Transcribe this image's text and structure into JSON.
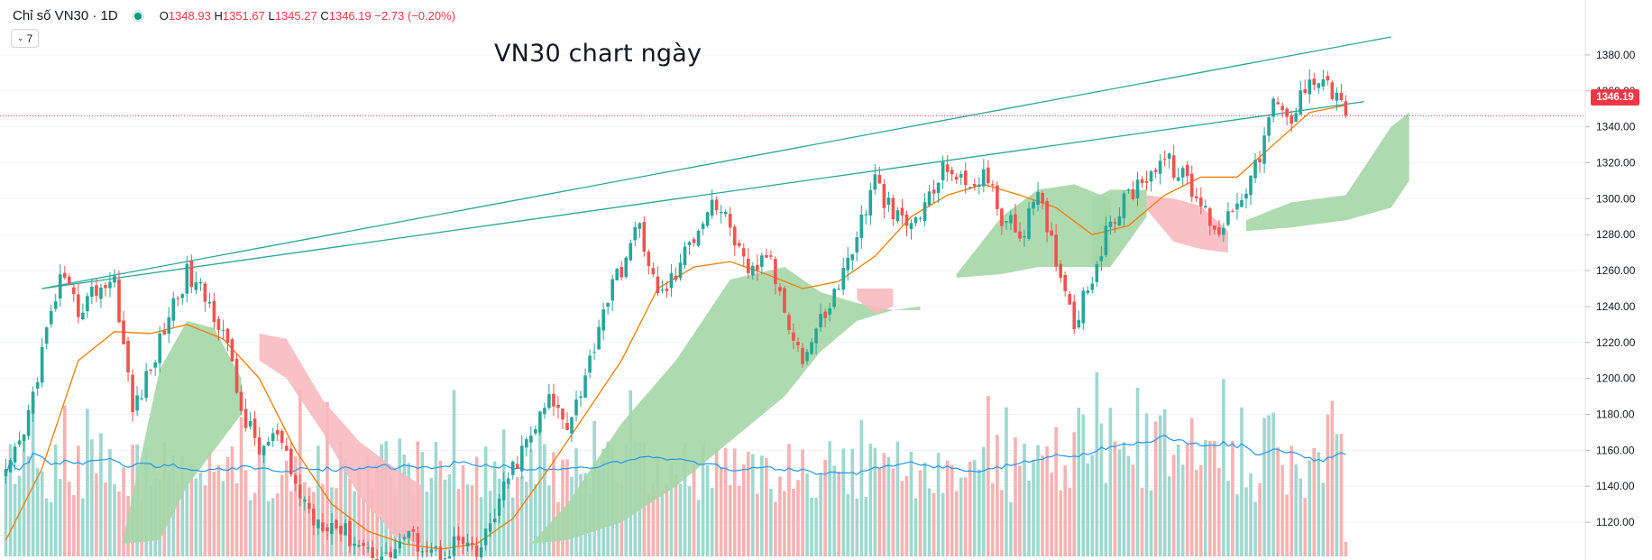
{
  "header": {
    "symbol": "Chỉ số VN30 · 1D",
    "open_label": "O",
    "open": "1348.93",
    "high_label": "H",
    "high": "1351.67",
    "low_label": "L",
    "low": "1345.27",
    "close_label": "C",
    "close": "1346.19",
    "change": "−2.73 (−0.20%)",
    "indicators_count": "7"
  },
  "title": "VN30 chart ngày",
  "last_price_tag": "1346.19",
  "colors": {
    "up": "#26a69a",
    "down": "#ef5350",
    "vol_up": "#9fd8cf",
    "vol_down": "#f6b2b2",
    "ma": "#f57c00",
    "vol_ma": "#2196f3",
    "cloud_bull": "#a5d6a7",
    "cloud_bear": "#f8b9bf",
    "trendline": "#26a69a",
    "last_price": "#f23645"
  },
  "chart_data": {
    "type": "candlestick",
    "interval": "1D",
    "y_axis": {
      "ylim": [
        1108,
        1392
      ],
      "ticks": [
        1380,
        1360,
        1340,
        1320,
        1300,
        1280,
        1260,
        1240,
        1220,
        1200,
        1180,
        1160,
        1140,
        1120
      ]
    },
    "last_price": 1346.19,
    "close_path": [
      [
        0,
        1145
      ],
      [
        4,
        1168
      ],
      [
        8,
        1215
      ],
      [
        12,
        1255
      ],
      [
        16,
        1238
      ],
      [
        20,
        1250
      ],
      [
        24,
        1255
      ],
      [
        28,
        1182
      ],
      [
        32,
        1205
      ],
      [
        36,
        1236
      ],
      [
        40,
        1258
      ],
      [
        44,
        1245
      ],
      [
        48,
        1228
      ],
      [
        52,
        1182
      ],
      [
        56,
        1160
      ],
      [
        60,
        1168
      ],
      [
        64,
        1140
      ],
      [
        68,
        1122
      ],
      [
        72,
        1120
      ],
      [
        76,
        1112
      ],
      [
        80,
        1105
      ],
      [
        84,
        1100
      ],
      [
        88,
        1112
      ],
      [
        92,
        1108
      ],
      [
        96,
        1102
      ],
      [
        100,
        1110
      ],
      [
        104,
        1100
      ],
      [
        108,
        1125
      ],
      [
        112,
        1150
      ],
      [
        116,
        1168
      ],
      [
        120,
        1188
      ],
      [
        124,
        1176
      ],
      [
        128,
        1200
      ],
      [
        132,
        1240
      ],
      [
        136,
        1262
      ],
      [
        140,
        1285
      ],
      [
        144,
        1245
      ],
      [
        148,
        1258
      ],
      [
        152,
        1280
      ],
      [
        156,
        1300
      ],
      [
        160,
        1285
      ],
      [
        164,
        1255
      ],
      [
        168,
        1270
      ],
      [
        172,
        1240
      ],
      [
        176,
        1210
      ],
      [
        180,
        1232
      ],
      [
        184,
        1252
      ],
      [
        188,
        1280
      ],
      [
        192,
        1310
      ],
      [
        196,
        1290
      ],
      [
        200,
        1285
      ],
      [
        204,
        1300
      ],
      [
        208,
        1320
      ],
      [
        212,
        1305
      ],
      [
        216,
        1315
      ],
      [
        220,
        1290
      ],
      [
        224,
        1280
      ],
      [
        228,
        1300
      ],
      [
        232,
        1268
      ],
      [
        236,
        1232
      ],
      [
        240,
        1258
      ],
      [
        244,
        1286
      ],
      [
        248,
        1302
      ],
      [
        252,
        1314
      ],
      [
        256,
        1322
      ],
      [
        260,
        1312
      ],
      [
        264,
        1296
      ],
      [
        268,
        1282
      ],
      [
        272,
        1300
      ],
      [
        276,
        1316
      ],
      [
        280,
        1352
      ],
      [
        284,
        1342
      ],
      [
        288,
        1370
      ],
      [
        292,
        1365
      ],
      [
        296,
        1346
      ]
    ],
    "ma20_path": [
      [
        0,
        1110
      ],
      [
        8,
        1150
      ],
      [
        16,
        1210
      ],
      [
        24,
        1226
      ],
      [
        32,
        1225
      ],
      [
        40,
        1230
      ],
      [
        48,
        1222
      ],
      [
        56,
        1200
      ],
      [
        64,
        1160
      ],
      [
        72,
        1130
      ],
      [
        80,
        1115
      ],
      [
        88,
        1108
      ],
      [
        96,
        1105
      ],
      [
        104,
        1108
      ],
      [
        112,
        1122
      ],
      [
        120,
        1150
      ],
      [
        128,
        1180
      ],
      [
        136,
        1210
      ],
      [
        144,
        1250
      ],
      [
        152,
        1262
      ],
      [
        160,
        1265
      ],
      [
        168,
        1258
      ],
      [
        176,
        1250
      ],
      [
        184,
        1254
      ],
      [
        192,
        1268
      ],
      [
        200,
        1290
      ],
      [
        208,
        1302
      ],
      [
        216,
        1308
      ],
      [
        224,
        1302
      ],
      [
        232,
        1295
      ],
      [
        240,
        1280
      ],
      [
        248,
        1285
      ],
      [
        256,
        1302
      ],
      [
        264,
        1312
      ],
      [
        272,
        1312
      ],
      [
        280,
        1330
      ],
      [
        288,
        1348
      ],
      [
        296,
        1352
      ]
    ],
    "cloud_bull": [
      {
        "x": [
          26,
          34,
          40,
          46,
          52
        ],
        "top": [
          1112,
          1205,
          1232,
          1228,
          1200
        ],
        "bot": [
          1108,
          1110,
          1140,
          1160,
          1180
        ]
      },
      {
        "x": [
          116,
          124,
          136,
          148,
          160,
          172,
          180,
          188,
          196,
          202
        ],
        "top": [
          1108,
          1130,
          1175,
          1210,
          1255,
          1262,
          1248,
          1242,
          1238,
          1240
        ],
        "bot": [
          1108,
          1110,
          1120,
          1140,
          1165,
          1190,
          1215,
          1232,
          1238,
          1238
        ]
      },
      {
        "x": [
          210,
          220,
          228,
          236,
          244
        ],
        "top": [
          1258,
          1290,
          1305,
          1308,
          1300
        ],
        "bot": [
          1256,
          1258,
          1262,
          1262,
          1262
        ]
      },
      {
        "x": [
          240,
          244,
          252
        ],
        "top": [
          1300,
          1305,
          1305
        ],
        "bot": [
          1262,
          1262,
          1290
        ]
      },
      {
        "x": [
          274,
          284,
          296,
          306,
          310
        ],
        "top": [
          1288,
          1298,
          1302,
          1340,
          1348
        ],
        "bot": [
          1282,
          1284,
          1288,
          1295,
          1310
        ]
      }
    ],
    "cloud_bear": [
      {
        "x": [
          56,
          62,
          70,
          78,
          86,
          92
        ],
        "top": [
          1225,
          1222,
          1188,
          1165,
          1150,
          1140
        ],
        "bot": [
          1210,
          1200,
          1170,
          1135,
          1112,
          1108
        ]
      },
      {
        "x": [
          188,
          192,
          196
        ],
        "top": [
          1250,
          1250,
          1250
        ],
        "bot": [
          1244,
          1236,
          1240
        ]
      },
      {
        "x": [
          252,
          258,
          264,
          270
        ],
        "top": [
          1302,
          1300,
          1296,
          1282
        ],
        "bot": [
          1294,
          1276,
          1272,
          1270
        ]
      }
    ],
    "trendlines": [
      {
        "from": [
          8,
          1250
        ],
        "to": [
          306,
          1390
        ]
      },
      {
        "from": [
          8,
          1250
        ],
        "to": [
          300,
          1354
        ]
      }
    ],
    "seed": 42
  }
}
